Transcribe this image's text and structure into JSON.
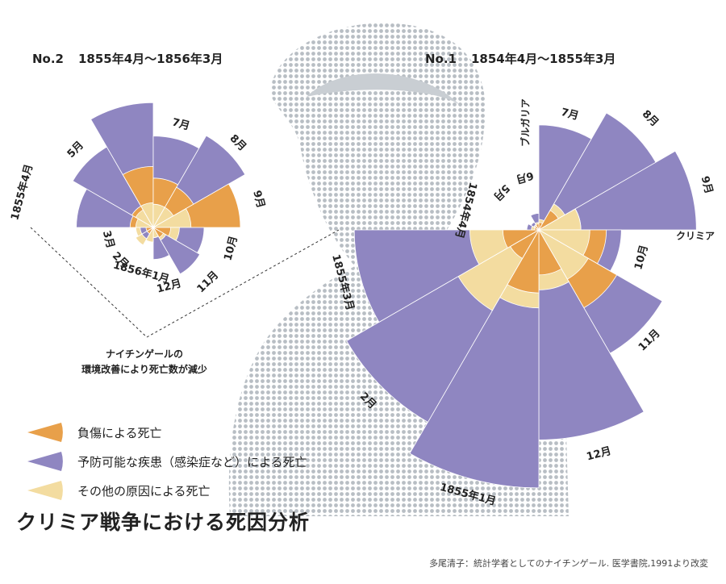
{
  "chart_data": [
    {
      "type": "polar-area",
      "number": "No.2",
      "period": "1855年4月～1856年3月",
      "note": [
        "ナイチンゲールの",
        "環境改善により死亡数が減少"
      ],
      "months": [
        {
          "label": "1855年4月",
          "disease": 0.53,
          "wounds": 0.16,
          "other": 0.12
        },
        {
          "label": "5月",
          "disease": 0.64,
          "wounds": 0.17,
          "other": 0.14
        },
        {
          "label": "",
          "disease": 0.86,
          "wounds": 0.42,
          "other": 0.17
        },
        {
          "label": "7月",
          "disease": 0.63,
          "wounds": 0.34,
          "other": 0.16
        },
        {
          "label": "8月",
          "disease": 0.73,
          "wounds": 0.32,
          "other": 0.16
        },
        {
          "label": "9月",
          "disease": 0.6,
          "wounds": 0.6,
          "other": 0.26
        },
        {
          "label": "10月",
          "disease": 0.35,
          "wounds": 0.12,
          "other": 0.18
        },
        {
          "label": "11月",
          "disease": 0.37,
          "wounds": 0.08,
          "other": 0.1
        },
        {
          "label": "12月",
          "disease": 0.22,
          "wounds": 0.07,
          "other": 0.07
        },
        {
          "label": "1856年1月",
          "disease": 0.1,
          "wounds": 0.1,
          "other": 0.1
        },
        {
          "label": "2月",
          "disease": 0.09,
          "wounds": 0.05,
          "other": 0.14
        },
        {
          "label": "3月",
          "disease": 0.09,
          "wounds": 0.05,
          "other": 0.12
        }
      ]
    },
    {
      "type": "polar-area",
      "number": "No.1",
      "period": "1854年4月～1855年3月",
      "months": [
        {
          "label": "7月",
          "disease": 0.7,
          "wounds": 0.05,
          "other": 0.07
        },
        {
          "label": "8月",
          "disease": 0.9,
          "wounds": 0.15,
          "other": 0.2
        },
        {
          "label": "9月",
          "disease": 1.05,
          "wounds": 0.28,
          "other": 0.28
        },
        {
          "label": "10月",
          "disease": 0.55,
          "wounds": 0.45,
          "other": 0.34
        },
        {
          "label": "11月",
          "disease": 0.95,
          "wounds": 0.6,
          "other": 0.38
        },
        {
          "label": "12月",
          "disease": 1.4,
          "wounds": 0.3,
          "other": 0.4
        },
        {
          "label": "1855年1月",
          "disease": 1.72,
          "wounds": 0.42,
          "other": 0.52
        },
        {
          "label": "2月",
          "disease": 1.48,
          "wounds": 0.22,
          "other": 0.62
        },
        {
          "label": "1855年3月",
          "disease": 1.23,
          "wounds": 0.24,
          "other": 0.46
        },
        {
          "label": "1854年4月",
          "disease": 0.08,
          "wounds": 0.03,
          "other": 0.05
        },
        {
          "label": "5月",
          "disease": 0.06,
          "wounds": 0.03,
          "other": 0.04
        },
        {
          "label": "6月",
          "disease": 0.11,
          "wounds": 0.04,
          "other": 0.05
        }
      ],
      "annotations": [
        "ブルガリア",
        "クリミア"
      ]
    }
  ],
  "legend": [
    {
      "key": "wounds",
      "label": "負傷による死亡",
      "color": "#e8a04a"
    },
    {
      "key": "disease",
      "label": "予防可能な疾患（感染症など）による死亡",
      "color": "#8f86c1"
    },
    {
      "key": "other",
      "label": "その他の原因による死亡",
      "color": "#f3dca0"
    }
  ],
  "title": "クリミア戦争における死因分析",
  "source": "多尾清子：統計学者としてのナイチンゲール. 医学書院,1991より改変"
}
